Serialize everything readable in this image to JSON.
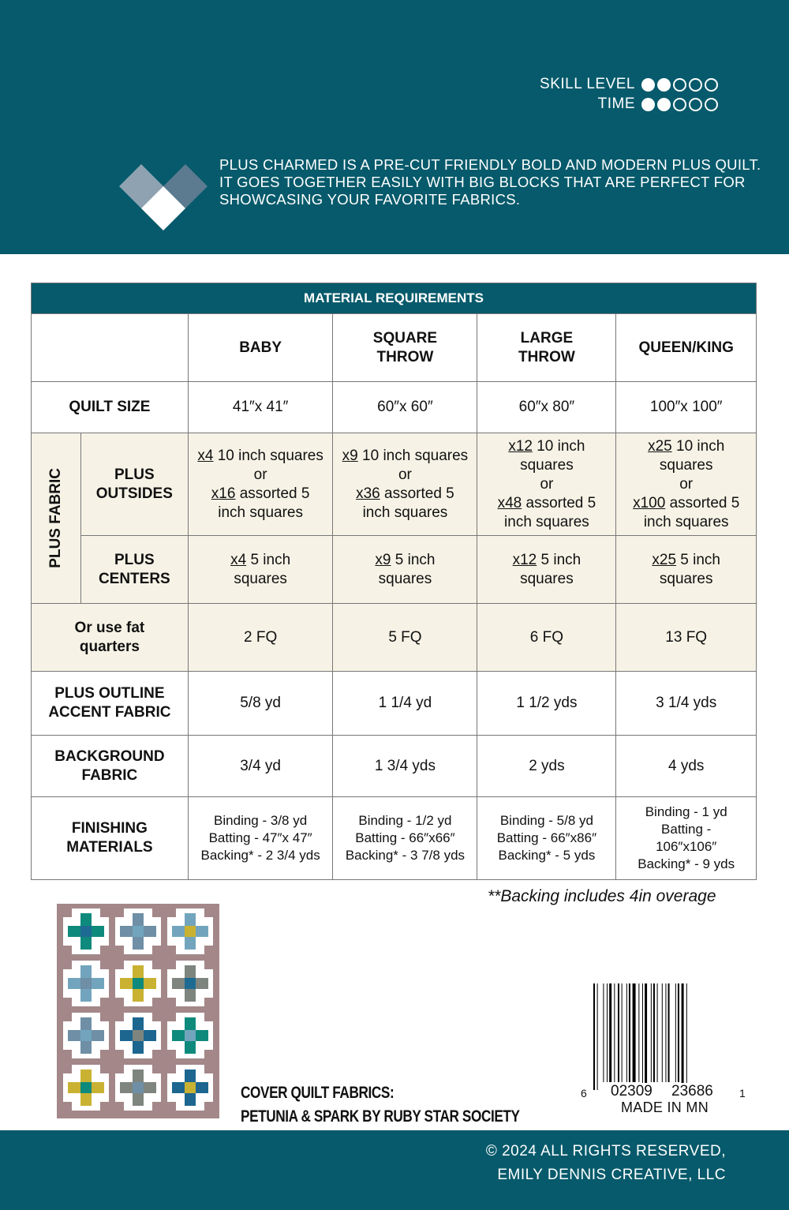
{
  "header": {
    "skill_label": "SKILL LEVEL",
    "skill_level": 2,
    "time_label": "TIME",
    "time_level": 2,
    "max_level": 5,
    "intro": [
      "PLUS CHARMED IS A PRE-CUT FRIENDLY BOLD AND MODERN PLUS QUILT.",
      "IT GOES TOGETHER EASILY WITH BIG BLOCKS THAT ARE PERFECT FOR",
      "SHOWCASING YOUR FAVORITE FABRICS."
    ]
  },
  "table": {
    "title": "MATERIAL REQUIREMENTS",
    "columns": [
      "BABY",
      "SQUARE THROW",
      "LARGE THROW",
      "QUEEN/KING"
    ],
    "plus_fabric_label": "PLUS FABRIC",
    "rows": [
      {
        "label": "QUILT SIZE",
        "cream": false,
        "cells": [
          [
            {
              "t": "41″x 41″"
            }
          ],
          [
            {
              "t": "60″x 60″"
            }
          ],
          [
            {
              "t": "60″x 80″"
            }
          ],
          [
            {
              "t": "100″x 100″"
            }
          ]
        ]
      },
      {
        "label": "PLUS OUTSIDES",
        "cream": true,
        "group": true,
        "cells": [
          [
            {
              "u": "x4",
              "t": " 10 inch squares"
            },
            {
              "t": "or"
            },
            {
              "u": "x16",
              "t": " assorted 5"
            },
            {
              "t": "inch squares"
            }
          ],
          [
            {
              "u": "x9",
              "t": " 10 inch squares"
            },
            {
              "t": "or"
            },
            {
              "u": "x36",
              "t": " assorted 5"
            },
            {
              "t": "inch squares"
            }
          ],
          [
            {
              "u": "x12",
              "t": " 10 inch"
            },
            {
              "t": "squares"
            },
            {
              "t": "or"
            },
            {
              "u": "x48",
              "t": " assorted 5"
            },
            {
              "t": "inch squares"
            }
          ],
          [
            {
              "u": "x25",
              "t": " 10 inch"
            },
            {
              "t": "squares"
            },
            {
              "t": "or"
            },
            {
              "u": "x100",
              "t": " assorted 5"
            },
            {
              "t": "inch squares"
            }
          ]
        ]
      },
      {
        "label": "PLUS CENTERS",
        "cream": true,
        "group": true,
        "cells": [
          [
            {
              "u": "x4",
              "t": " 5 inch"
            },
            {
              "t": "squares"
            }
          ],
          [
            {
              "u": "x9",
              "t": " 5 inch"
            },
            {
              "t": "squares"
            }
          ],
          [
            {
              "u": "x12",
              "t": " 5 inch"
            },
            {
              "t": "squares"
            }
          ],
          [
            {
              "u": "x25",
              "t": " 5 inch"
            },
            {
              "t": "squares"
            }
          ]
        ]
      },
      {
        "label": "Or use fat quarters",
        "cream": true,
        "cells": [
          [
            {
              "t": "2 FQ"
            }
          ],
          [
            {
              "t": "5 FQ"
            }
          ],
          [
            {
              "t": "6 FQ"
            }
          ],
          [
            {
              "t": "13 FQ"
            }
          ]
        ]
      },
      {
        "label": "PLUS OUTLINE ACCENT FABRIC",
        "cream": false,
        "cells": [
          [
            {
              "t": "5/8 yd"
            }
          ],
          [
            {
              "t": "1 1/4 yd"
            }
          ],
          [
            {
              "t": "1 1/2 yds"
            }
          ],
          [
            {
              "t": "3 1/4 yds"
            }
          ]
        ]
      },
      {
        "label": "BACKGROUND FABRIC",
        "cream": false,
        "cells": [
          [
            {
              "t": "3/4 yd"
            }
          ],
          [
            {
              "t": "1 3/4 yds"
            }
          ],
          [
            {
              "t": "2 yds"
            }
          ],
          [
            {
              "t": "4 yds"
            }
          ]
        ]
      },
      {
        "label": "FINISHING MATERIALS",
        "cream": false,
        "fin": true,
        "cells": [
          [
            {
              "t": "Binding - 3/8 yd"
            },
            {
              "t": "Batting - 47″x 47″"
            },
            {
              "t": "Backing* - 2 3/4 yds"
            }
          ],
          [
            {
              "t": "Binding - 1/2 yd"
            },
            {
              "t": "Batting - 66″x66″"
            },
            {
              "t": "Backing* - 3 7/8 yds"
            }
          ],
          [
            {
              "t": "Binding - 5/8 yd"
            },
            {
              "t": "Batting - 66″x86″"
            },
            {
              "t": "Backing* - 5 yds"
            }
          ],
          [
            {
              "t": "Binding - 1 yd"
            },
            {
              "t": "Batting -"
            },
            {
              "t": "106″x106″"
            },
            {
              "t": "Backing* - 9 yds"
            }
          ]
        ]
      }
    ]
  },
  "note": "**Backing includes 4in overage",
  "fabrics": [
    "COVER QUILT FABRICS:",
    "PETUNIA & SPARK BY RUBY STAR SOCIETY"
  ],
  "barcode": {
    "left": "6",
    "mid1": "02309",
    "mid2": "23686",
    "right": "1",
    "made": "MADE IN MN"
  },
  "footer": [
    "© 2024 ALL RIGHTS RESERVED,",
    "EMILY DENNIS CREATIVE, LLC"
  ],
  "quilt_colors": {
    "bg": "#a38789",
    "blocks": [
      [
        "#0e8a7c",
        "#1d6b93"
      ],
      [
        "#6e8fa5",
        "#72a5bd"
      ],
      [
        "#72a5bd",
        "#c9b232"
      ],
      [
        "#72a5bd",
        "#6e8fa5"
      ],
      [
        "#c9b232",
        "#0e8a7c"
      ],
      [
        "#7e857f",
        "#1d6b93"
      ],
      [
        "#6e8fa5",
        "#72a5bd"
      ],
      [
        "#1c6690",
        "#7e857f"
      ],
      [
        "#0e8a7c",
        "#72a5bd"
      ],
      [
        "#c9b232",
        "#0e8a7c"
      ],
      [
        "#7e857f",
        "#6e8fa5"
      ],
      [
        "#1c6690",
        "#c9b232"
      ]
    ]
  }
}
